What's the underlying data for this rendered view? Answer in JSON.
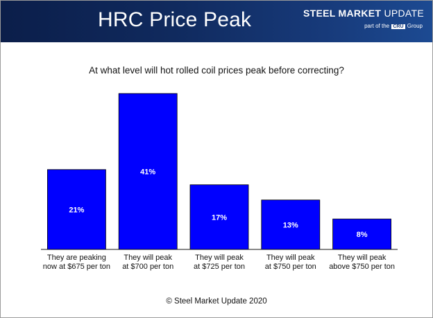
{
  "header": {
    "title": "HRC Price Peak",
    "logo_main_bold": "STEEL MARKET",
    "logo_main_rest": " UPDATE",
    "logo_sub_prefix": "part of the",
    "logo_sub_badge": "CRU",
    "logo_sub_suffix": "Group"
  },
  "footer": {
    "copyright": "© Steel Market Update 2020"
  },
  "colors": {
    "bar": "#0000ff",
    "header": "#102a5e"
  },
  "chart_data": {
    "type": "bar",
    "title": "At what level will hot rolled coil prices peak before correcting?",
    "xlabel": "",
    "ylabel": "",
    "ylim": [
      0,
      45
    ],
    "grid": false,
    "legend": "none",
    "categories": [
      [
        "They are peaking",
        "now at $675 per ton"
      ],
      [
        "They will peak",
        "at $700 per ton"
      ],
      [
        "They will peak",
        "at $725 per ton"
      ],
      [
        "They will peak",
        "at $750 per ton"
      ],
      [
        "They will peak",
        "above $750 per ton"
      ]
    ],
    "values": [
      21,
      41,
      17,
      13,
      8
    ],
    "data_labels": [
      "21%",
      "41%",
      "17%",
      "13%",
      "8%"
    ]
  }
}
